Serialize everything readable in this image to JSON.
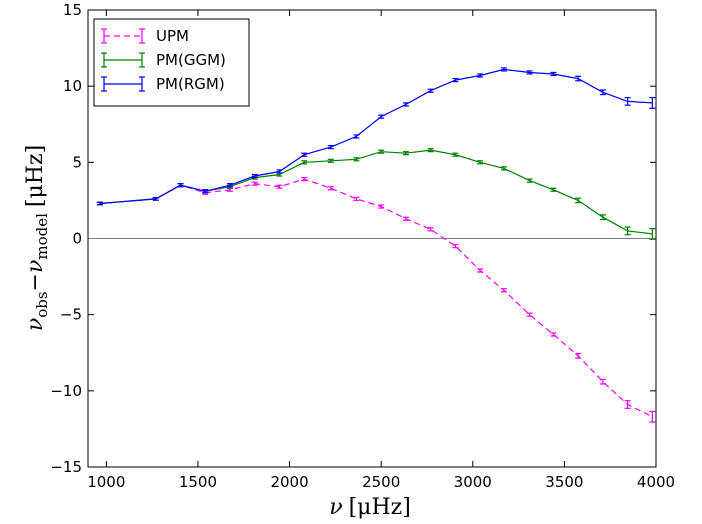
{
  "chart_data": {
    "type": "line",
    "title": "",
    "xlabel": {
      "base": "ν",
      "unit": "[μHz]"
    },
    "ylabel": {
      "base": "ν",
      "sub1": "obs",
      "minus": "−",
      "base2": "ν",
      "sub2": "model",
      "unit": "[μHz]"
    },
    "xlim": [
      900,
      4000
    ],
    "ylim": [
      -15,
      15
    ],
    "xticks": [
      1000,
      1500,
      2000,
      2500,
      3000,
      3500,
      4000
    ],
    "yticks": [
      -15,
      -10,
      -5,
      0,
      5,
      10,
      15
    ],
    "ytick_labels": [
      "−15",
      "−10",
      "−5",
      "0",
      "5",
      "10",
      "15"
    ],
    "zero_line": true,
    "grid": false,
    "legend_position": "top-left",
    "series": [
      {
        "name": "UPM",
        "color": "#ff00ff",
        "dashed": true,
        "x": [
          965,
          1270,
          1405,
          1540,
          1675,
          1810,
          1945,
          2080,
          2225,
          2365,
          2500,
          2635,
          2770,
          2905,
          3040,
          3170,
          3310,
          3440,
          3575,
          3710,
          3845,
          3980
        ],
        "y": [
          2.3,
          2.6,
          3.5,
          3.0,
          3.2,
          3.6,
          3.4,
          3.9,
          3.3,
          2.6,
          2.1,
          1.3,
          0.6,
          -0.5,
          -2.1,
          -3.4,
          -5.0,
          -6.3,
          -7.7,
          -9.4,
          -10.9,
          -11.7
        ],
        "err": [
          0.05,
          0.05,
          0.1,
          0.1,
          0.1,
          0.1,
          0.1,
          0.1,
          0.1,
          0.1,
          0.1,
          0.1,
          0.1,
          0.1,
          0.1,
          0.1,
          0.1,
          0.1,
          0.15,
          0.15,
          0.25,
          0.35
        ]
      },
      {
        "name": "PM(GGM)",
        "color": "#008000",
        "dashed": false,
        "x": [
          965,
          1270,
          1405,
          1540,
          1675,
          1810,
          1945,
          2080,
          2225,
          2365,
          2500,
          2635,
          2770,
          2905,
          3040,
          3170,
          3310,
          3440,
          3575,
          3710,
          3845,
          3980
        ],
        "y": [
          2.3,
          2.6,
          3.5,
          3.1,
          3.4,
          4.0,
          4.2,
          5.0,
          5.1,
          5.2,
          5.7,
          5.6,
          5.8,
          5.5,
          5.0,
          4.6,
          3.8,
          3.2,
          2.5,
          1.4,
          0.5,
          0.3
        ],
        "err": [
          0.05,
          0.05,
          0.1,
          0.1,
          0.1,
          0.1,
          0.1,
          0.1,
          0.1,
          0.1,
          0.1,
          0.1,
          0.1,
          0.1,
          0.1,
          0.1,
          0.1,
          0.1,
          0.15,
          0.15,
          0.25,
          0.35
        ]
      },
      {
        "name": "PM(RGM)",
        "color": "#0000ff",
        "dashed": false,
        "x": [
          965,
          1270,
          1405,
          1540,
          1675,
          1810,
          1945,
          2080,
          2225,
          2365,
          2500,
          2635,
          2770,
          2905,
          3040,
          3170,
          3310,
          3440,
          3575,
          3710,
          3845,
          3980
        ],
        "y": [
          2.3,
          2.6,
          3.5,
          3.1,
          3.5,
          4.1,
          4.4,
          5.5,
          6.0,
          6.7,
          8.0,
          8.8,
          9.7,
          10.4,
          10.7,
          11.1,
          10.9,
          10.8,
          10.5,
          9.6,
          9.0,
          8.9
        ],
        "err": [
          0.05,
          0.05,
          0.1,
          0.1,
          0.1,
          0.1,
          0.1,
          0.1,
          0.1,
          0.1,
          0.1,
          0.1,
          0.1,
          0.1,
          0.1,
          0.1,
          0.1,
          0.1,
          0.15,
          0.15,
          0.25,
          0.35
        ]
      }
    ]
  }
}
